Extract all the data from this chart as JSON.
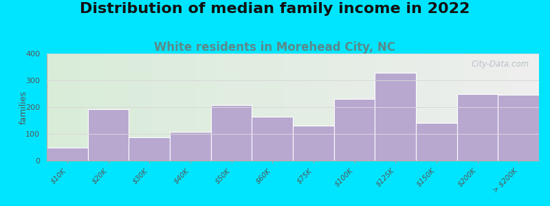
{
  "title": "Distribution of median family income in 2022",
  "subtitle": "White residents in Morehead City, NC",
  "categories": [
    "$10K",
    "$20K",
    "$30K",
    "$40K",
    "$50K",
    "$60K",
    "$75K",
    "$100K",
    "$125K",
    "$150K",
    "$200K",
    "> $200K"
  ],
  "values": [
    50,
    192,
    88,
    108,
    207,
    165,
    130,
    232,
    328,
    140,
    248,
    245
  ],
  "bar_color": "#b8a8d0",
  "bar_edge_color": "#ffffff",
  "background_outer": "#00e5ff",
  "ylabel": "families",
  "ylim": [
    0,
    400
  ],
  "yticks": [
    0,
    100,
    200,
    300,
    400
  ],
  "title_fontsize": 16,
  "subtitle_fontsize": 12,
  "subtitle_color": "#5a8a8a",
  "watermark_text": "City-Data.com",
  "watermark_color": "#b0b8c0",
  "grid_color": "#d8d8d8",
  "bg_left_color": "#d8ecd8",
  "bg_right_color": "#eeeeee"
}
